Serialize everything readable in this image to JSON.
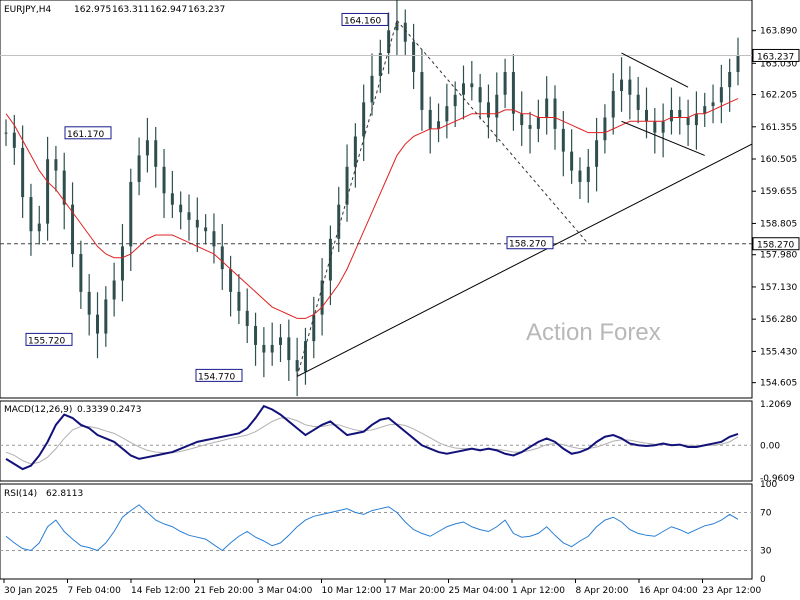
{
  "chart_data": {
    "type": "candlestick",
    "symbol": "EURJPY,H4",
    "ohlc": [
      "162.975",
      "163.311",
      "162.947",
      "163.237"
    ],
    "watermark": "Action Forex",
    "price_axis": {
      "ylim": [
        154.2,
        164.7
      ],
      "ticks": [
        "163.890",
        "163.030",
        "162.205",
        "161.355",
        "160.505",
        "159.655",
        "158.805",
        "157.980",
        "157.130",
        "156.280",
        "155.430",
        "154.605"
      ],
      "current_price": "163.237",
      "support_label": "158.270"
    },
    "time_axis": {
      "labels": [
        "30 Jan 2025",
        "7 Feb 04:00",
        "14 Feb 12:00",
        "21 Feb 20:00",
        "3 Mar 04:00",
        "10 Mar 12:00",
        "17 Mar 20:00",
        "25 Mar 04:00",
        "1 Apr 12:00",
        "8 Apr 20:00",
        "16 Apr 04:00",
        "23 Apr 12:00"
      ]
    },
    "annotations": [
      {
        "text": "161.170",
        "price": 161.17
      },
      {
        "text": "164.160",
        "price": 164.16
      },
      {
        "text": "155.720",
        "price": 155.72
      },
      {
        "text": "154.770",
        "price": 154.77
      },
      {
        "text": "158.270",
        "price": 158.27
      }
    ],
    "price_series": {
      "name": "EURJPY",
      "close": [
        161.2,
        160.8,
        159.5,
        158.6,
        158.8,
        160.5,
        160.2,
        159.3,
        158.0,
        157.0,
        156.4,
        155.9,
        156.8,
        157.3,
        158.2,
        159.9,
        160.6,
        161.0,
        160.3,
        159.6,
        159.3,
        159.1,
        158.9,
        158.7,
        158.6,
        158.2,
        157.6,
        157.0,
        156.5,
        156.1,
        155.6,
        155.4,
        155.6,
        155.8,
        155.2,
        154.9,
        155.7,
        156.4,
        157.3,
        158.4,
        159.3,
        160.3,
        161.1,
        162.0,
        162.7,
        163.3,
        163.9,
        164.1,
        163.6,
        162.8,
        161.8,
        161.3,
        161.5,
        161.9,
        162.2,
        162.5,
        162.4,
        162.0,
        161.6,
        162.2,
        162.8,
        161.7,
        161.4,
        161.3,
        161.6,
        162.1,
        161.3,
        160.7,
        160.2,
        159.9,
        160.3,
        161.0,
        161.6,
        162.3,
        162.6,
        162.2,
        161.8,
        161.5,
        161.2,
        161.5,
        161.8,
        161.6,
        161.4,
        161.7,
        161.9,
        162.0,
        162.4,
        162.8,
        163.237
      ],
      "ema": [
        161.7,
        161.4,
        161.0,
        160.6,
        160.2,
        159.9,
        159.7,
        159.4,
        159.1,
        158.8,
        158.5,
        158.2,
        158.0,
        157.9,
        157.9,
        158.0,
        158.2,
        158.4,
        158.5,
        158.5,
        158.5,
        158.4,
        158.3,
        158.2,
        158.1,
        158.0,
        157.8,
        157.6,
        157.4,
        157.2,
        157.0,
        156.8,
        156.6,
        156.5,
        156.4,
        156.3,
        156.3,
        156.4,
        156.6,
        156.9,
        157.2,
        157.6,
        158.1,
        158.6,
        159.1,
        159.6,
        160.1,
        160.6,
        160.9,
        161.1,
        161.2,
        161.3,
        161.3,
        161.4,
        161.5,
        161.6,
        161.7,
        161.7,
        161.7,
        161.7,
        161.8,
        161.8,
        161.7,
        161.7,
        161.6,
        161.6,
        161.6,
        161.5,
        161.4,
        161.3,
        161.2,
        161.2,
        161.2,
        161.3,
        161.4,
        161.5,
        161.5,
        161.5,
        161.5,
        161.5,
        161.6,
        161.6,
        161.6,
        161.7,
        161.7,
        161.8,
        161.9,
        162.0,
        162.1
      ]
    },
    "macd": {
      "label": "MACD(12,26,9)",
      "value": "0.3339",
      "signal_value": "0.2473",
      "ylim": [
        -1.05,
        1.3
      ],
      "ticks": [
        "1.2069",
        "0.00",
        "-0.9609"
      ],
      "main": [
        -0.4,
        -0.55,
        -0.7,
        -0.6,
        -0.3,
        0.1,
        0.6,
        0.9,
        0.8,
        0.6,
        0.5,
        0.3,
        0.2,
        0.1,
        -0.1,
        -0.3,
        -0.4,
        -0.35,
        -0.3,
        -0.25,
        -0.2,
        -0.1,
        0.0,
        0.1,
        0.15,
        0.2,
        0.25,
        0.3,
        0.35,
        0.5,
        0.8,
        1.15,
        1.05,
        0.9,
        0.7,
        0.5,
        0.3,
        0.45,
        0.6,
        0.7,
        0.5,
        0.3,
        0.35,
        0.4,
        0.6,
        0.75,
        0.8,
        0.6,
        0.4,
        0.2,
        0.0,
        -0.1,
        -0.2,
        -0.25,
        -0.2,
        -0.15,
        -0.1,
        -0.15,
        -0.1,
        -0.15,
        -0.25,
        -0.3,
        -0.2,
        -0.05,
        0.1,
        0.2,
        0.1,
        -0.1,
        -0.25,
        -0.2,
        -0.1,
        0.1,
        0.25,
        0.3,
        0.2,
        0.05,
        0.0,
        -0.02,
        0.0,
        0.05,
        0.0,
        0.02,
        -0.05,
        -0.05,
        0.0,
        0.05,
        0.1,
        0.25,
        0.3339
      ],
      "signal": [
        -0.2,
        -0.3,
        -0.45,
        -0.55,
        -0.5,
        -0.35,
        -0.1,
        0.2,
        0.45,
        0.55,
        0.55,
        0.5,
        0.42,
        0.35,
        0.22,
        0.08,
        -0.05,
        -0.15,
        -0.2,
        -0.22,
        -0.22,
        -0.18,
        -0.12,
        -0.05,
        0.02,
        0.08,
        0.14,
        0.2,
        0.25,
        0.3,
        0.4,
        0.55,
        0.7,
        0.8,
        0.8,
        0.72,
        0.6,
        0.55,
        0.55,
        0.6,
        0.6,
        0.52,
        0.45,
        0.42,
        0.45,
        0.52,
        0.6,
        0.62,
        0.58,
        0.48,
        0.35,
        0.22,
        0.08,
        -0.02,
        -0.08,
        -0.1,
        -0.1,
        -0.12,
        -0.12,
        -0.12,
        -0.15,
        -0.2,
        -0.2,
        -0.15,
        -0.08,
        0.02,
        0.05,
        0.02,
        -0.05,
        -0.1,
        -0.1,
        -0.05,
        0.03,
        0.12,
        0.16,
        0.15,
        0.1,
        0.06,
        0.03,
        0.02,
        0.02,
        0.01,
        0.0,
        -0.01,
        -0.01,
        0.0,
        0.03,
        0.1,
        0.2473
      ]
    },
    "rsi": {
      "label": "RSI(14)",
      "value": "62.8113",
      "ylim": [
        0,
        100
      ],
      "ticks": [
        "100",
        "70",
        "30",
        "0"
      ],
      "values": [
        45,
        38,
        32,
        30,
        38,
        55,
        62,
        50,
        42,
        35,
        33,
        30,
        38,
        50,
        65,
        72,
        78,
        70,
        62,
        58,
        55,
        50,
        46,
        44,
        42,
        36,
        30,
        38,
        45,
        50,
        44,
        40,
        35,
        38,
        46,
        55,
        62,
        66,
        68,
        70,
        72,
        74,
        70,
        68,
        72,
        74,
        76,
        70,
        60,
        52,
        48,
        45,
        50,
        55,
        58,
        60,
        55,
        52,
        50,
        55,
        62,
        48,
        44,
        45,
        48,
        55,
        46,
        38,
        34,
        40,
        45,
        55,
        62,
        65,
        60,
        52,
        48,
        46,
        45,
        50,
        55,
        52,
        48,
        52,
        56,
        58,
        62,
        68,
        62.8113
      ]
    }
  }
}
